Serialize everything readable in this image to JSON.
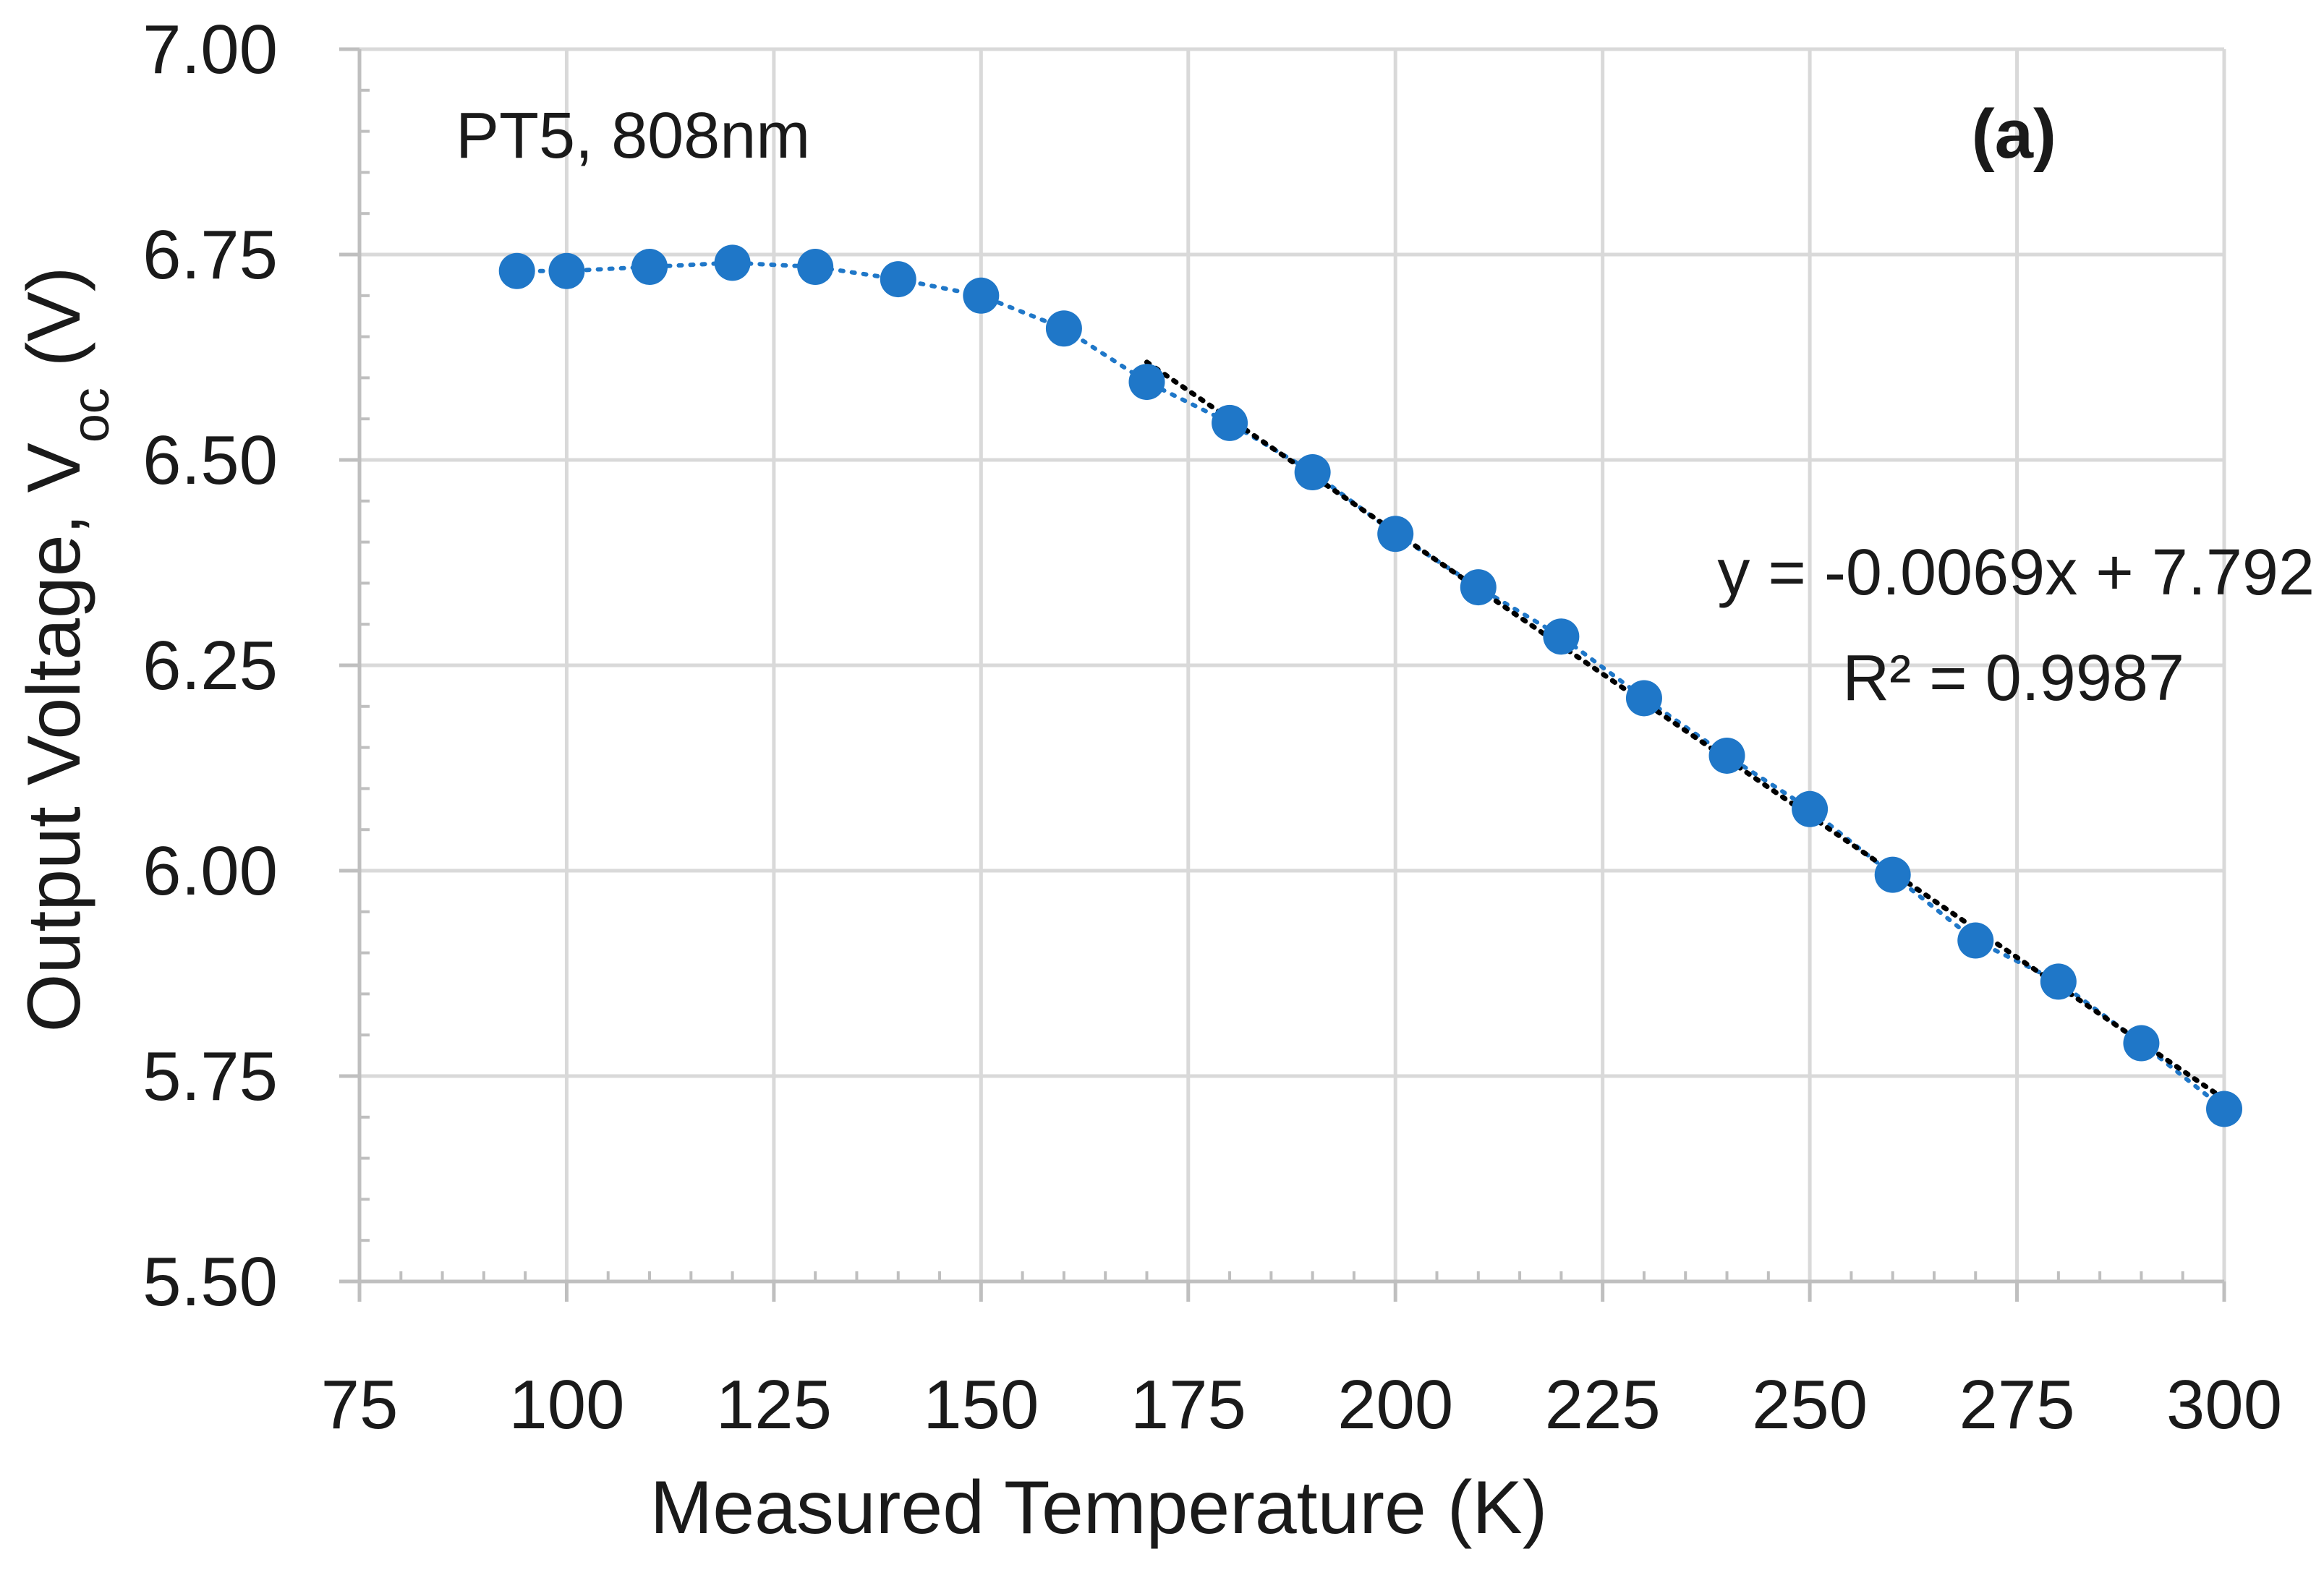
{
  "chart_data": {
    "type": "scatter",
    "title": "",
    "xlabel": "Measured Temperature (K)",
    "ylabel_main": "Output Voltage, V",
    "ylabel_sub": "oc",
    "ylabel_tail": " (V)",
    "xlim": [
      75,
      300
    ],
    "ylim": [
      5.5,
      7.0
    ],
    "x_ticks": [
      75,
      100,
      125,
      150,
      175,
      200,
      225,
      250,
      275,
      300
    ],
    "x_tick_labels": [
      "75",
      "100",
      "125",
      "150",
      "175",
      "200",
      "225",
      "250",
      "275",
      "300"
    ],
    "y_ticks": [
      5.5,
      5.75,
      6.0,
      6.25,
      6.5,
      6.75,
      7.0
    ],
    "y_tick_labels": [
      "5.50",
      "5.75",
      "6.00",
      "6.25",
      "6.50",
      "6.75",
      "7.00"
    ],
    "grid": true,
    "series": [
      {
        "name": "PT5, 808nm",
        "color": "#1f77c8",
        "x": [
          94,
          100,
          110,
          120,
          130,
          140,
          150,
          160,
          170,
          180,
          190,
          200,
          210,
          220,
          230,
          240,
          250,
          260,
          270,
          280,
          290,
          300
        ],
        "y": [
          6.73,
          6.73,
          6.735,
          6.74,
          6.735,
          6.72,
          6.7,
          6.66,
          6.595,
          6.545,
          6.485,
          6.41,
          6.345,
          6.285,
          6.21,
          6.14,
          6.075,
          5.995,
          5.915,
          5.865,
          5.79,
          5.71
        ]
      }
    ],
    "trendline": {
      "type": "linear",
      "color": "#000000",
      "slope": -0.0069,
      "intercept": 7.792,
      "x_range": [
        170,
        300
      ],
      "equation_label": "y = -0.0069x + 7.792",
      "r2_label": "R² = 0.9987"
    },
    "annotations": {
      "series_label": "PT5, 808nm",
      "panel_label": "(a)"
    }
  }
}
